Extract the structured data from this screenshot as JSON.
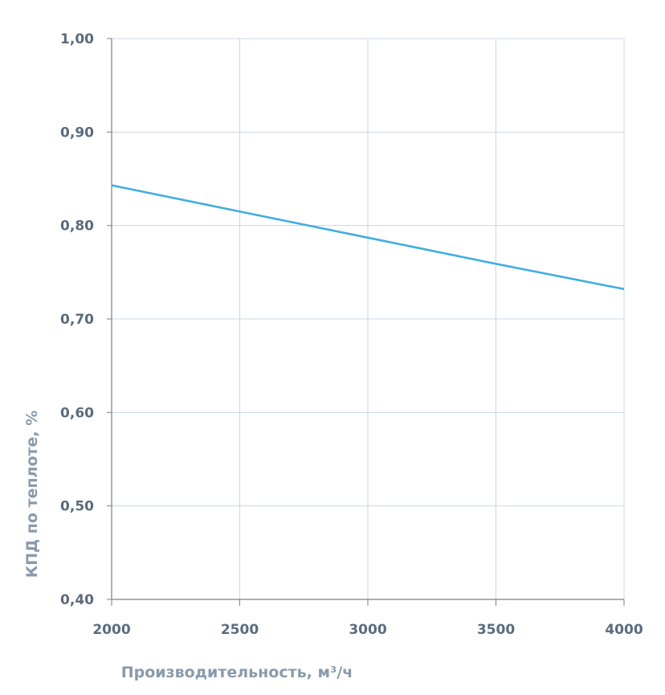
{
  "chart_data": {
    "type": "line",
    "title": "",
    "xlabel": "Производительность, м³/ч",
    "ylabel": "КПД по теплоте, %",
    "xlim": [
      2000,
      4000
    ],
    "ylim": [
      0.4,
      1.0
    ],
    "x_ticks": [
      "2000",
      "2500",
      "3000",
      "3500",
      "4000"
    ],
    "y_ticks": [
      "0,40",
      "0,50",
      "0,60",
      "0,70",
      "0,80",
      "0,90",
      "1,00"
    ],
    "grid": true,
    "series": [
      {
        "name": "КПД",
        "color": "#41ade2",
        "x": [
          2000,
          2500,
          3000,
          3500,
          4000
        ],
        "y": [
          0.843,
          0.815,
          0.787,
          0.759,
          0.732
        ]
      }
    ]
  }
}
